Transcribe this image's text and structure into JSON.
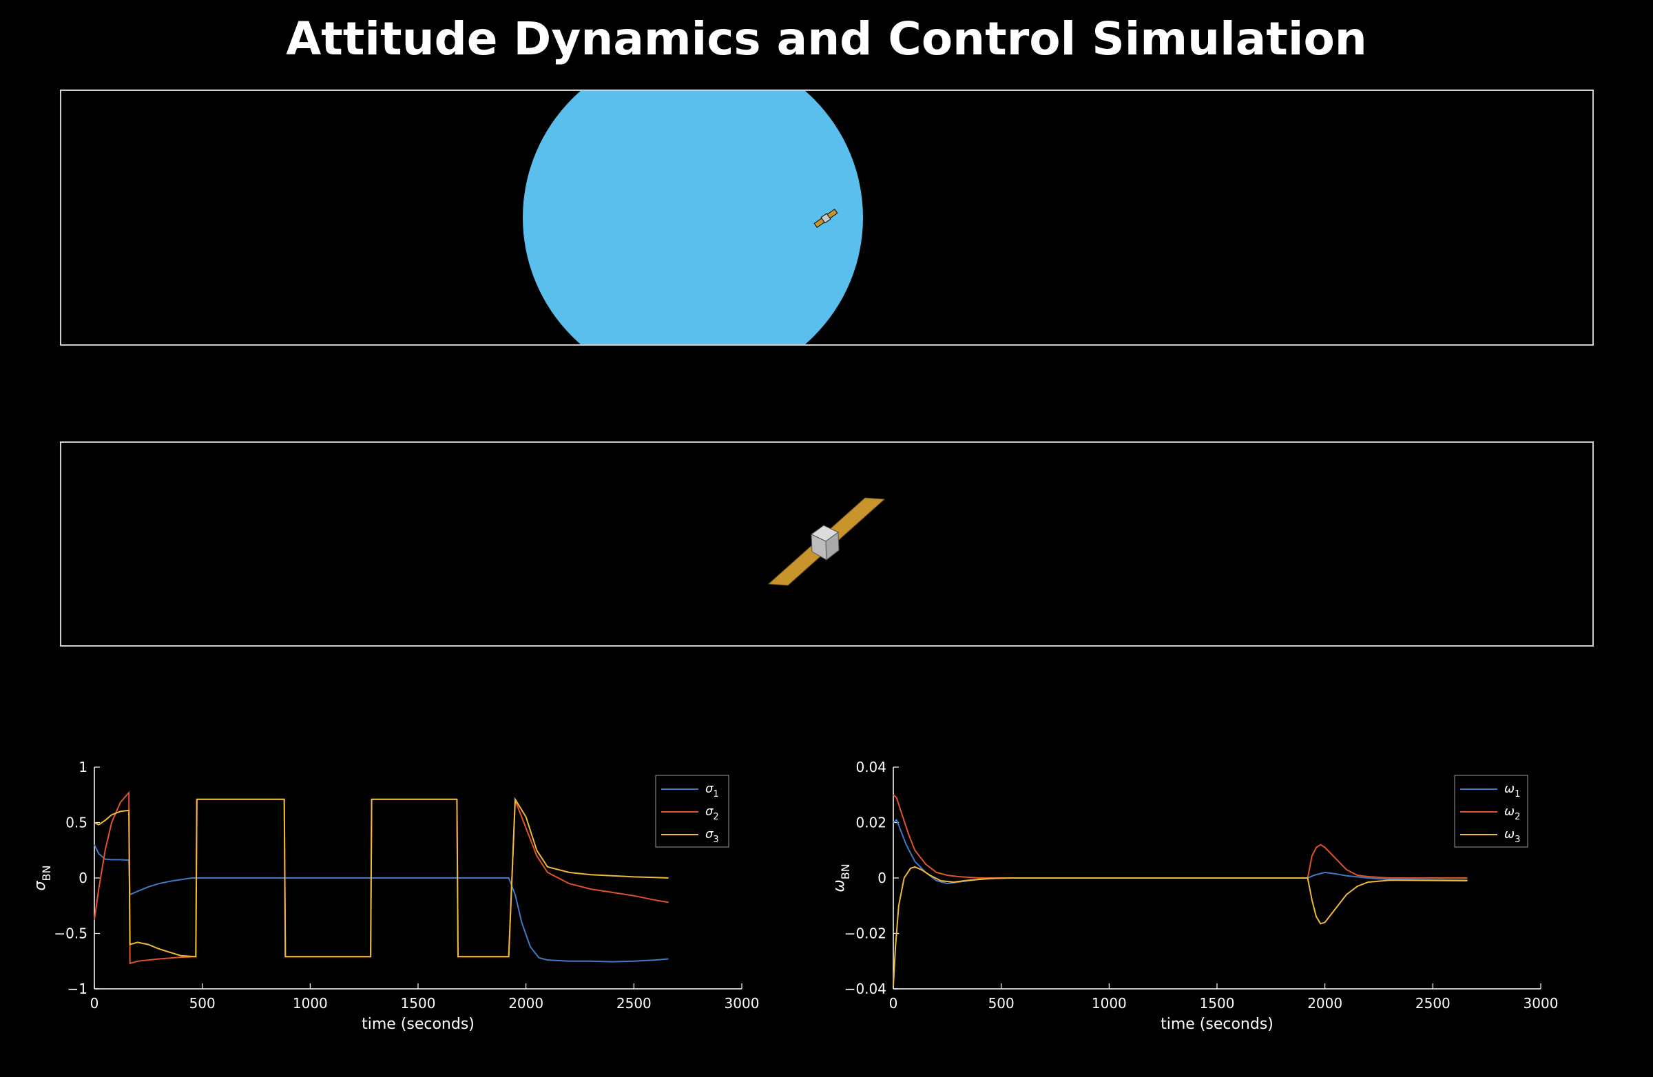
{
  "title": "Attitude Dynamics and Control Simulation",
  "colors": {
    "background": "#000000",
    "planet": "#5bbfee",
    "solar_panel": "#c8952c",
    "bus": "#c8c8c8",
    "series_1": "#3f7ac6",
    "series_2": "#e0542a",
    "series_3": "#f0b93a",
    "axis": "#ffffff"
  },
  "chart_data": [
    {
      "type": "line",
      "xlabel": "time (seconds)",
      "ylabel": "σ_BN",
      "xlim": [
        0,
        3000
      ],
      "ylim": [
        -1,
        1
      ],
      "xticks": [
        0,
        500,
        1000,
        1500,
        2000,
        2500,
        3000
      ],
      "xtick_labels": [
        "0",
        "500",
        "1000",
        "1500",
        "2000",
        "2500",
        "3000"
      ],
      "yticks": [
        -1,
        -0.5,
        0,
        0.5,
        1
      ],
      "ytick_labels": [
        "−1",
        "−0.5",
        "0",
        "0.5",
        "1"
      ],
      "legend_placement": "top-right",
      "series": [
        {
          "name": "σ1",
          "color": "#3f7ac6",
          "x": [
            0,
            20,
            50,
            80,
            120,
            160,
            165,
            200,
            250,
            300,
            350,
            400,
            450,
            500,
            600,
            800,
            1000,
            1500,
            1900,
            1920,
            1950,
            1980,
            2020,
            2060,
            2100,
            2200,
            2300,
            2400,
            2500,
            2600,
            2660
          ],
          "y": [
            0.3,
            0.22,
            0.17,
            0.165,
            0.165,
            0.16,
            -0.15,
            -0.12,
            -0.08,
            -0.05,
            -0.03,
            -0.015,
            0.0,
            0.0,
            0.0,
            0.0,
            0.0,
            0.0,
            0.0,
            0.0,
            -0.15,
            -0.4,
            -0.62,
            -0.72,
            -0.74,
            -0.75,
            -0.75,
            -0.755,
            -0.75,
            -0.74,
            -0.73
          ]
        },
        {
          "name": "σ2",
          "color": "#e0542a",
          "x": [
            0,
            20,
            50,
            80,
            120,
            160,
            165,
            200,
            300,
            400,
            470,
            475,
            880,
            885,
            1280,
            1285,
            1680,
            1685,
            1920,
            1950,
            2000,
            2050,
            2100,
            2200,
            2300,
            2400,
            2500,
            2600,
            2660
          ],
          "y": [
            -0.38,
            -0.1,
            0.25,
            0.5,
            0.68,
            0.77,
            -0.77,
            -0.75,
            -0.73,
            -0.715,
            -0.71,
            0.71,
            0.71,
            -0.71,
            -0.71,
            0.71,
            0.71,
            -0.71,
            -0.71,
            0.7,
            0.45,
            0.2,
            0.05,
            -0.05,
            -0.1,
            -0.13,
            -0.16,
            -0.2,
            -0.22
          ]
        },
        {
          "name": "σ3",
          "color": "#f0b93a",
          "x": [
            0,
            20,
            50,
            80,
            120,
            160,
            165,
            200,
            250,
            300,
            350,
            400,
            470,
            475,
            880,
            885,
            1280,
            1285,
            1680,
            1685,
            1920,
            1950,
            2000,
            2050,
            2100,
            2200,
            2300,
            2400,
            2500,
            2600,
            2660
          ],
          "y": [
            0.5,
            0.48,
            0.52,
            0.57,
            0.6,
            0.61,
            -0.6,
            -0.58,
            -0.6,
            -0.64,
            -0.67,
            -0.7,
            -0.71,
            0.71,
            0.71,
            -0.71,
            -0.71,
            0.71,
            0.71,
            -0.71,
            -0.71,
            0.71,
            0.55,
            0.25,
            0.1,
            0.05,
            0.03,
            0.02,
            0.01,
            0.005,
            0.0
          ]
        }
      ]
    },
    {
      "type": "line",
      "xlabel": "time (seconds)",
      "ylabel": "ω_BN",
      "xlim": [
        0,
        3000
      ],
      "ylim": [
        -0.04,
        0.04
      ],
      "xticks": [
        0,
        500,
        1000,
        1500,
        2000,
        2500,
        3000
      ],
      "xtick_labels": [
        "0",
        "500",
        "1000",
        "1500",
        "2000",
        "2500",
        "3000"
      ],
      "yticks": [
        -0.04,
        -0.02,
        0,
        0.02,
        0.04
      ],
      "ytick_labels": [
        "−0.04",
        "−0.02",
        "0",
        "0.02",
        "0.04"
      ],
      "legend_placement": "top-right",
      "series": [
        {
          "name": "ω1",
          "color": "#3f7ac6",
          "x": [
            0,
            15,
            30,
            60,
            100,
            150,
            200,
            250,
            300,
            400,
            500,
            1000,
            1900,
            1920,
            1950,
            2000,
            2050,
            2100,
            2200,
            2300,
            2660
          ],
          "y": [
            0.02,
            0.021,
            0.018,
            0.012,
            0.006,
            0.002,
            -0.001,
            -0.002,
            -0.0015,
            -0.0005,
            0.0,
            0.0,
            0.0,
            0.0,
            0.001,
            0.002,
            0.0015,
            0.0008,
            0.0,
            -0.0005,
            -0.0008
          ]
        },
        {
          "name": "ω2",
          "color": "#e0542a",
          "x": [
            0,
            15,
            40,
            70,
            100,
            150,
            200,
            250,
            300,
            400,
            500,
            1000,
            1900,
            1920,
            1940,
            1960,
            1980,
            2000,
            2050,
            2100,
            2150,
            2200,
            2300,
            2660
          ],
          "y": [
            0.03,
            0.029,
            0.023,
            0.016,
            0.01,
            0.005,
            0.002,
            0.001,
            0.0005,
            0.0,
            0.0,
            0.0,
            0.0,
            0.0,
            0.008,
            0.011,
            0.012,
            0.011,
            0.007,
            0.003,
            0.001,
            0.0005,
            0.0,
            0.0
          ]
        },
        {
          "name": "ω3",
          "color": "#f0b93a",
          "x": [
            0,
            10,
            25,
            50,
            80,
            100,
            130,
            170,
            220,
            280,
            350,
            450,
            550,
            1000,
            1900,
            1920,
            1940,
            1960,
            1980,
            2000,
            2050,
            2100,
            2150,
            2200,
            2300,
            2660
          ],
          "y": [
            -0.039,
            -0.025,
            -0.01,
            0.0,
            0.0035,
            0.004,
            0.003,
            0.001,
            -0.001,
            -0.0015,
            -0.0008,
            -0.0002,
            0.0,
            0.0,
            0.0,
            0.0,
            -0.008,
            -0.014,
            -0.0165,
            -0.016,
            -0.011,
            -0.006,
            -0.003,
            -0.0015,
            -0.0008,
            -0.001
          ]
        }
      ]
    }
  ]
}
